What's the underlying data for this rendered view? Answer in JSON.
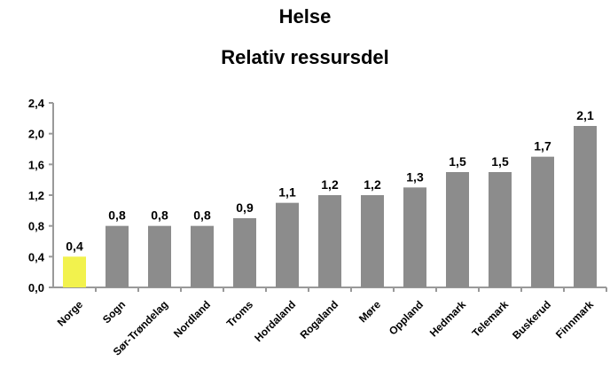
{
  "chart_data": {
    "type": "bar",
    "title": "Helse",
    "subtitle": "Relativ ressursdel",
    "categories": [
      "Norge",
      "Sogn",
      "Sør-Trøndelag",
      "Nordland",
      "Troms",
      "Hordaland",
      "Rogaland",
      "Møre",
      "Oppland",
      "Hedmark",
      "Telemark",
      "Buskerud",
      "Finnmark"
    ],
    "values": [
      0.4,
      0.8,
      0.8,
      0.8,
      0.9,
      1.1,
      1.2,
      1.2,
      1.3,
      1.5,
      1.5,
      1.7,
      2.1
    ],
    "data_labels": [
      "0,4",
      "0,8",
      "0,8",
      "0,8",
      "0,9",
      "1,1",
      "1,2",
      "1,2",
      "1,3",
      "1,5",
      "1,5",
      "1,7",
      "2,1"
    ],
    "yticks": [
      "0,0",
      "0,4",
      "0,8",
      "1,2",
      "1,6",
      "2,0",
      "2,4"
    ],
    "ylim": [
      0,
      2.4
    ],
    "highlight_index": 0,
    "colors": {
      "bar": "#8c8c8c",
      "highlight": "#f2f24d",
      "axis": "#999999",
      "text": "#000000"
    },
    "grid": false,
    "legend": "none"
  }
}
